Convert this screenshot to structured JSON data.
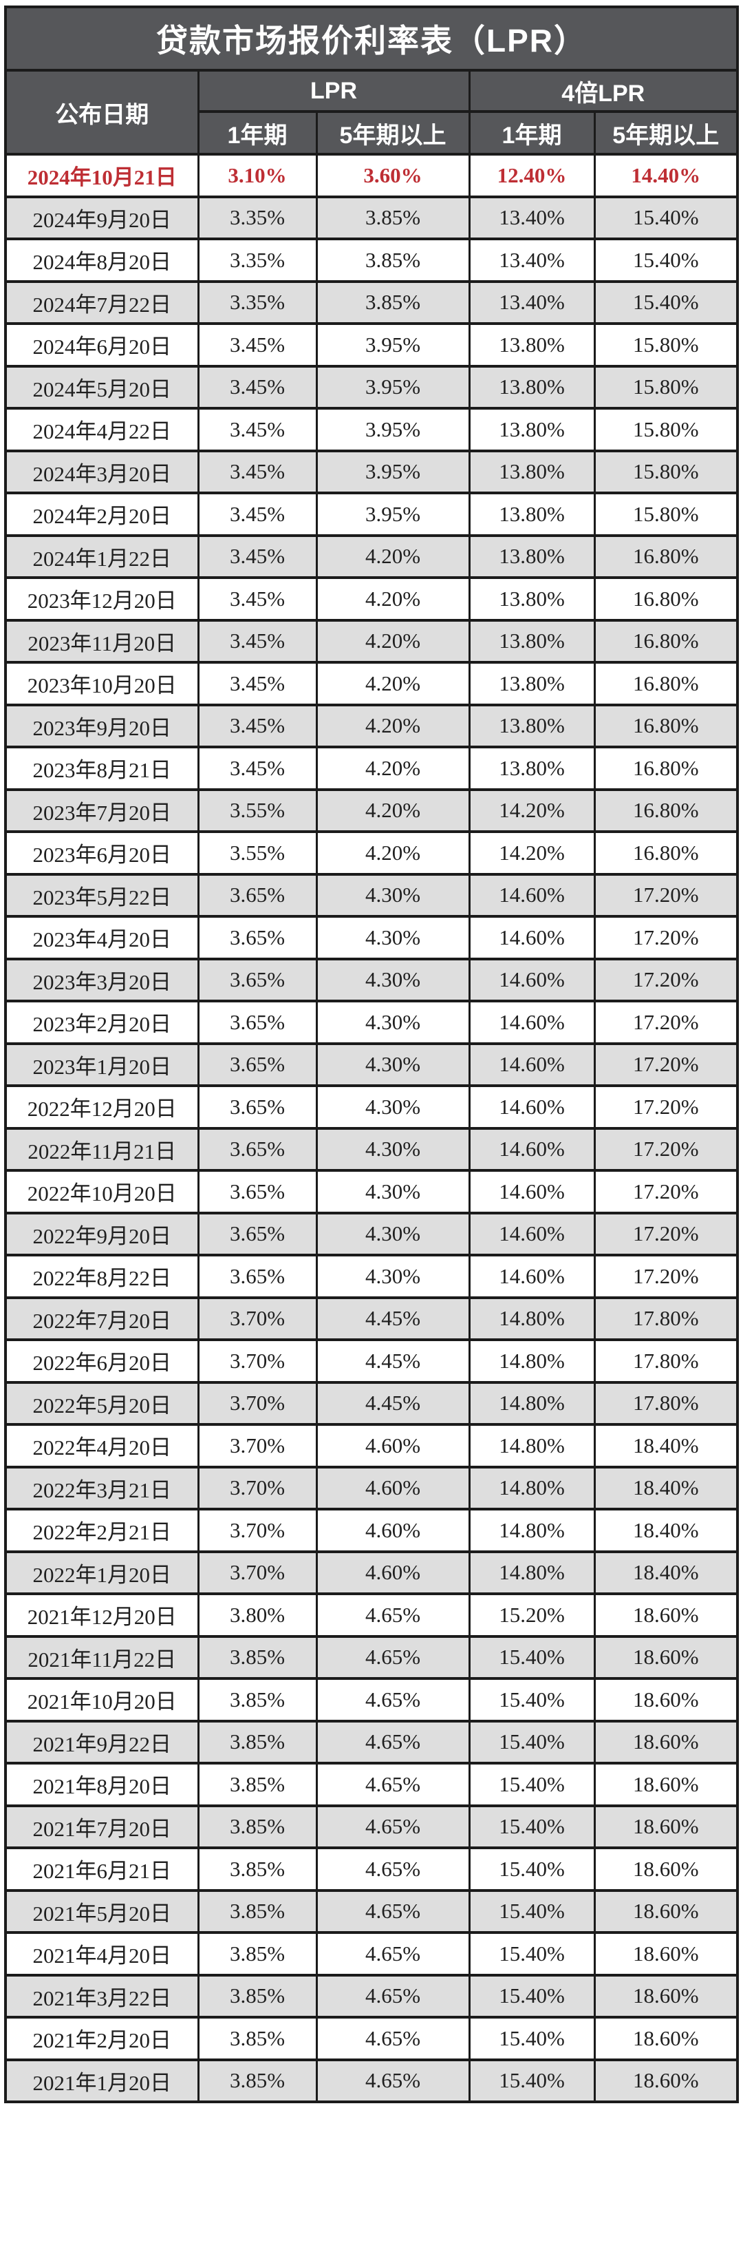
{
  "title": "贷款市场报价利率表（LPR）",
  "styles": {
    "header_bg": "#56575A",
    "header_text": "#FFFFFF",
    "highlight_color": "#BE2E34",
    "row_alt_bg": "#DEDEDE",
    "border_color": "#1B1B1B"
  },
  "chart_data": {
    "type": "table",
    "title": "贷款市场报价利率表（LPR）",
    "legend_position": "none",
    "grid": true,
    "column_groups": [
      {
        "label": "公布日期",
        "span": 1
      },
      {
        "label": "LPR",
        "span": 2
      },
      {
        "label": "4倍LPR",
        "span": 2
      }
    ],
    "headers": {
      "date": "公布日期",
      "lpr_group": "LPR",
      "lpr4_group": "4倍LPR",
      "lpr_1y": "1年期",
      "lpr_5y": "5年期以上",
      "lpr4_1y": "1年期",
      "lpr4_5y": "5年期以上"
    },
    "highlight_row_index": 0,
    "rows": [
      [
        "2024年10月21日",
        "3.10%",
        "3.60%",
        "12.40%",
        "14.40%"
      ],
      [
        "2024年9月20日",
        "3.35%",
        "3.85%",
        "13.40%",
        "15.40%"
      ],
      [
        "2024年8月20日",
        "3.35%",
        "3.85%",
        "13.40%",
        "15.40%"
      ],
      [
        "2024年7月22日",
        "3.35%",
        "3.85%",
        "13.40%",
        "15.40%"
      ],
      [
        "2024年6月20日",
        "3.45%",
        "3.95%",
        "13.80%",
        "15.80%"
      ],
      [
        "2024年5月20日",
        "3.45%",
        "3.95%",
        "13.80%",
        "15.80%"
      ],
      [
        "2024年4月22日",
        "3.45%",
        "3.95%",
        "13.80%",
        "15.80%"
      ],
      [
        "2024年3月20日",
        "3.45%",
        "3.95%",
        "13.80%",
        "15.80%"
      ],
      [
        "2024年2月20日",
        "3.45%",
        "3.95%",
        "13.80%",
        "15.80%"
      ],
      [
        "2024年1月22日",
        "3.45%",
        "4.20%",
        "13.80%",
        "16.80%"
      ],
      [
        "2023年12月20日",
        "3.45%",
        "4.20%",
        "13.80%",
        "16.80%"
      ],
      [
        "2023年11月20日",
        "3.45%",
        "4.20%",
        "13.80%",
        "16.80%"
      ],
      [
        "2023年10月20日",
        "3.45%",
        "4.20%",
        "13.80%",
        "16.80%"
      ],
      [
        "2023年9月20日",
        "3.45%",
        "4.20%",
        "13.80%",
        "16.80%"
      ],
      [
        "2023年8月21日",
        "3.45%",
        "4.20%",
        "13.80%",
        "16.80%"
      ],
      [
        "2023年7月20日",
        "3.55%",
        "4.20%",
        "14.20%",
        "16.80%"
      ],
      [
        "2023年6月20日",
        "3.55%",
        "4.20%",
        "14.20%",
        "16.80%"
      ],
      [
        "2023年5月22日",
        "3.65%",
        "4.30%",
        "14.60%",
        "17.20%"
      ],
      [
        "2023年4月20日",
        "3.65%",
        "4.30%",
        "14.60%",
        "17.20%"
      ],
      [
        "2023年3月20日",
        "3.65%",
        "4.30%",
        "14.60%",
        "17.20%"
      ],
      [
        "2023年2月20日",
        "3.65%",
        "4.30%",
        "14.60%",
        "17.20%"
      ],
      [
        "2023年1月20日",
        "3.65%",
        "4.30%",
        "14.60%",
        "17.20%"
      ],
      [
        "2022年12月20日",
        "3.65%",
        "4.30%",
        "14.60%",
        "17.20%"
      ],
      [
        "2022年11月21日",
        "3.65%",
        "4.30%",
        "14.60%",
        "17.20%"
      ],
      [
        "2022年10月20日",
        "3.65%",
        "4.30%",
        "14.60%",
        "17.20%"
      ],
      [
        "2022年9月20日",
        "3.65%",
        "4.30%",
        "14.60%",
        "17.20%"
      ],
      [
        "2022年8月22日",
        "3.65%",
        "4.30%",
        "14.60%",
        "17.20%"
      ],
      [
        "2022年7月20日",
        "3.70%",
        "4.45%",
        "14.80%",
        "17.80%"
      ],
      [
        "2022年6月20日",
        "3.70%",
        "4.45%",
        "14.80%",
        "17.80%"
      ],
      [
        "2022年5月20日",
        "3.70%",
        "4.45%",
        "14.80%",
        "17.80%"
      ],
      [
        "2022年4月20日",
        "3.70%",
        "4.60%",
        "14.80%",
        "18.40%"
      ],
      [
        "2022年3月21日",
        "3.70%",
        "4.60%",
        "14.80%",
        "18.40%"
      ],
      [
        "2022年2月21日",
        "3.70%",
        "4.60%",
        "14.80%",
        "18.40%"
      ],
      [
        "2022年1月20日",
        "3.70%",
        "4.60%",
        "14.80%",
        "18.40%"
      ],
      [
        "2021年12月20日",
        "3.80%",
        "4.65%",
        "15.20%",
        "18.60%"
      ],
      [
        "2021年11月22日",
        "3.85%",
        "4.65%",
        "15.40%",
        "18.60%"
      ],
      [
        "2021年10月20日",
        "3.85%",
        "4.65%",
        "15.40%",
        "18.60%"
      ],
      [
        "2021年9月22日",
        "3.85%",
        "4.65%",
        "15.40%",
        "18.60%"
      ],
      [
        "2021年8月20日",
        "3.85%",
        "4.65%",
        "15.40%",
        "18.60%"
      ],
      [
        "2021年7月20日",
        "3.85%",
        "4.65%",
        "15.40%",
        "18.60%"
      ],
      [
        "2021年6月21日",
        "3.85%",
        "4.65%",
        "15.40%",
        "18.60%"
      ],
      [
        "2021年5月20日",
        "3.85%",
        "4.65%",
        "15.40%",
        "18.60%"
      ],
      [
        "2021年4月20日",
        "3.85%",
        "4.65%",
        "15.40%",
        "18.60%"
      ],
      [
        "2021年3月22日",
        "3.85%",
        "4.65%",
        "15.40%",
        "18.60%"
      ],
      [
        "2021年2月20日",
        "3.85%",
        "4.65%",
        "15.40%",
        "18.60%"
      ],
      [
        "2021年1月20日",
        "3.85%",
        "4.65%",
        "15.40%",
        "18.60%"
      ]
    ]
  }
}
